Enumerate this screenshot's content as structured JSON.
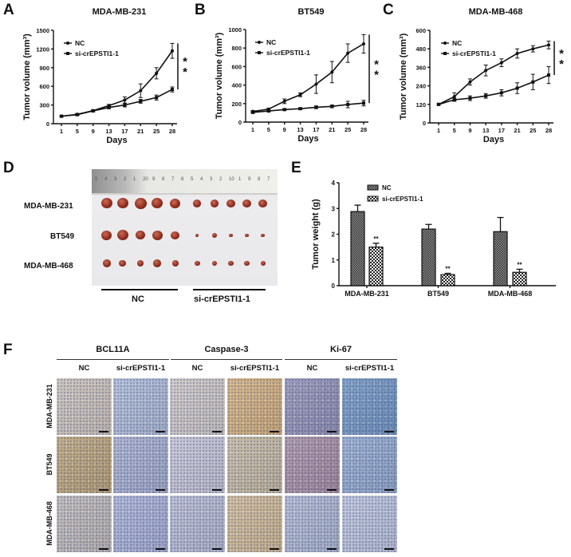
{
  "panels": {
    "A": "A",
    "B": "B",
    "C": "C",
    "D": "D",
    "E": "E",
    "F": "F"
  },
  "chart_data": [
    {
      "panel": "A",
      "type": "line",
      "title": "MDA-MB-231",
      "xlabel": "Days",
      "ylabel": "Tumor volume (mm³)",
      "categories": [
        "1",
        "5",
        "9",
        "13",
        "17",
        "21",
        "25",
        "28"
      ],
      "ylim": [
        0,
        1500
      ],
      "yticks": [
        "0",
        "300",
        "600",
        "900",
        "1200",
        "1500"
      ],
      "legend": "top-left",
      "significance": "**",
      "series": [
        {
          "name": "NC",
          "values": [
            120,
            150,
            210,
            290,
            380,
            530,
            810,
            1170
          ],
          "errors": [
            15,
            15,
            15,
            20,
            50,
            110,
            90,
            120
          ]
        },
        {
          "name": "si-crEPSTI1-1",
          "values": [
            120,
            145,
            205,
            260,
            300,
            360,
            420,
            550
          ],
          "errors": [
            15,
            15,
            15,
            20,
            30,
            30,
            40,
            40
          ]
        }
      ]
    },
    {
      "panel": "B",
      "type": "line",
      "title": "BT549",
      "xlabel": "Days",
      "ylabel": "Tumor volume (mm³)",
      "categories": [
        "1",
        "5",
        "9",
        "13",
        "17",
        "21",
        "25",
        "28"
      ],
      "ylim": [
        0,
        1000
      ],
      "yticks": [
        "0",
        "200",
        "400",
        "600",
        "800",
        "1000"
      ],
      "legend": "top-left",
      "significance": "**",
      "series": [
        {
          "name": "NC",
          "values": [
            115,
            140,
            225,
            295,
            410,
            540,
            745,
            845
          ],
          "errors": [
            10,
            10,
            25,
            20,
            100,
            115,
            100,
            100
          ]
        },
        {
          "name": "si-crEPSTI1-1",
          "values": [
            105,
            120,
            135,
            145,
            160,
            170,
            190,
            205
          ],
          "errors": [
            10,
            10,
            10,
            10,
            15,
            15,
            35,
            30
          ]
        }
      ]
    },
    {
      "panel": "C",
      "type": "line",
      "title": "MDA-MB-468",
      "xlabel": "Days",
      "ylabel": "Tumor volume (mm³)",
      "categories": [
        "1",
        "5",
        "9",
        "13",
        "17",
        "21",
        "25",
        "28"
      ],
      "ylim": [
        0,
        600
      ],
      "yticks": [
        "0",
        "120",
        "240",
        "360",
        "480",
        "600"
      ],
      "legend": "top-left",
      "significance": "**",
      "series": [
        {
          "name": "NC",
          "values": [
            120,
            170,
            265,
            340,
            390,
            450,
            480,
            505
          ],
          "errors": [
            5,
            25,
            20,
            35,
            25,
            30,
            20,
            25
          ]
        },
        {
          "name": "si-crEPSTI1-1",
          "values": [
            120,
            150,
            160,
            175,
            195,
            225,
            265,
            310
          ],
          "errors": [
            5,
            10,
            15,
            15,
            20,
            35,
            50,
            55
          ]
        }
      ]
    },
    {
      "panel": "E",
      "type": "bar",
      "title": "",
      "xlabel": "",
      "ylabel": "Tumor weight (g)",
      "categories": [
        "MDA-MB-231",
        "BT549",
        "MDA-MB-468"
      ],
      "ylim": [
        0,
        4
      ],
      "yticks": [
        "0",
        "1",
        "2",
        "3",
        "4"
      ],
      "legend": "top-left",
      "series": [
        {
          "name": "NC",
          "values": [
            2.88,
            2.2,
            2.1
          ],
          "errors": [
            0.25,
            0.18,
            0.55
          ],
          "pattern": "dense-hatch"
        },
        {
          "name": "si-crEPSTI1-1",
          "values": [
            1.5,
            0.43,
            0.52
          ],
          "errors": [
            0.15,
            0.05,
            0.12
          ],
          "pattern": "checker",
          "annotations": [
            "**",
            "**",
            "**"
          ]
        }
      ]
    }
  ],
  "panel_d": {
    "rows": [
      "MDA-MB-231",
      "BT549",
      "MDA-MB-468"
    ],
    "groups": [
      "NC",
      "si-crEPSTI1-1"
    ],
    "ruler_marks": [
      "5",
      "4",
      "3",
      "2",
      "1",
      "20",
      "9",
      "8",
      "7",
      "6",
      "5",
      "4",
      "3",
      "2",
      "10",
      "1",
      "9",
      "8",
      "7"
    ]
  },
  "panel_f": {
    "markers": [
      "BCL11A",
      "Caspase-3",
      "Ki-67"
    ],
    "conditions": [
      "NC",
      "si-crEPSTI1-1"
    ],
    "rows": [
      "MDA-MB-231",
      "BT549",
      "MDA-MB-468"
    ]
  },
  "colors": {
    "line": "#111111",
    "tumor": "#8e2a1c",
    "ihc_blue": "#a6b4d0",
    "ihc_brown": "#c6a468"
  }
}
